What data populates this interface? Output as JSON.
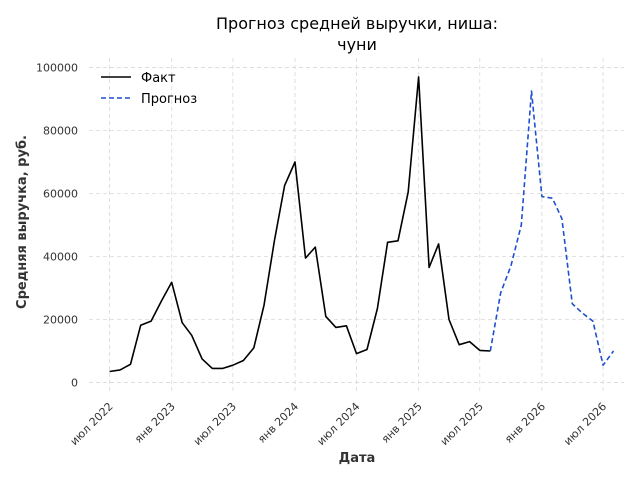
{
  "chart_data": {
    "type": "line",
    "title_lines": [
      "Прогноз средней выручки, ниша:",
      "чуни"
    ],
    "xlabel": "Дата",
    "ylabel": "Средняя выручка, руб.",
    "xlim": [
      "2022-05-01",
      "2026-09-01"
    ],
    "ylim": [
      -3000,
      103000
    ],
    "yticks": [
      0,
      20000,
      40000,
      60000,
      80000,
      100000
    ],
    "ytick_labels": [
      "0",
      "20000",
      "40000",
      "60000",
      "80000",
      "100000"
    ],
    "xticks": [
      {
        "date": "2022-07-01",
        "label": "июл 2022"
      },
      {
        "date": "2023-01-01",
        "label": "янв 2023"
      },
      {
        "date": "2023-07-01",
        "label": "июл 2023"
      },
      {
        "date": "2024-01-01",
        "label": "янв 2024"
      },
      {
        "date": "2024-07-01",
        "label": "июл 2024"
      },
      {
        "date": "2025-01-01",
        "label": "янв 2025"
      },
      {
        "date": "2025-07-01",
        "label": "июл 2025"
      },
      {
        "date": "2026-01-01",
        "label": "янв 2026"
      },
      {
        "date": "2026-07-01",
        "label": "июл 2026"
      }
    ],
    "grid": true,
    "legend_position": "top-left",
    "series": [
      {
        "name": "Факт",
        "color": "#000000",
        "style": "solid",
        "x": [
          "2022-07-01",
          "2022-08-01",
          "2022-09-01",
          "2022-10-01",
          "2022-11-01",
          "2022-12-01",
          "2023-01-01",
          "2023-02-01",
          "2023-03-01",
          "2023-04-01",
          "2023-05-01",
          "2023-06-01",
          "2023-07-01",
          "2023-08-01",
          "2023-09-01",
          "2023-10-01",
          "2023-11-01",
          "2023-12-01",
          "2024-01-01",
          "2024-02-01",
          "2024-03-01",
          "2024-04-01",
          "2024-05-01",
          "2024-06-01",
          "2024-07-01",
          "2024-08-01",
          "2024-09-01",
          "2024-10-01",
          "2024-11-01",
          "2024-12-01",
          "2025-01-01",
          "2025-02-01",
          "2025-03-01",
          "2025-04-01",
          "2025-05-01",
          "2025-06-01",
          "2025-07-01",
          "2025-08-01"
        ],
        "y": [
          3500,
          4000,
          5800,
          18200,
          19500,
          25800,
          31800,
          19000,
          15000,
          7500,
          4500,
          4500,
          5500,
          7000,
          11000,
          24500,
          45000,
          62500,
          70000,
          39500,
          43000,
          21000,
          17500,
          18000,
          9200,
          10500,
          23500,
          44500,
          45000,
          60500,
          97000,
          36500,
          44000,
          20000,
          12000,
          13000,
          10200,
          10000
        ]
      },
      {
        "name": "Прогноз",
        "color": "#1f4fd1",
        "style": "dashed",
        "x": [
          "2025-08-01",
          "2025-09-01",
          "2025-10-01",
          "2025-11-01",
          "2025-12-01",
          "2026-01-01",
          "2026-02-01",
          "2026-03-01",
          "2026-04-01",
          "2026-05-01",
          "2026-06-01",
          "2026-07-01",
          "2026-08-01"
        ],
        "y": [
          10000,
          28500,
          37000,
          50000,
          92500,
          59000,
          58500,
          52000,
          25000,
          22000,
          19500,
          5500,
          10000
        ]
      }
    ]
  }
}
